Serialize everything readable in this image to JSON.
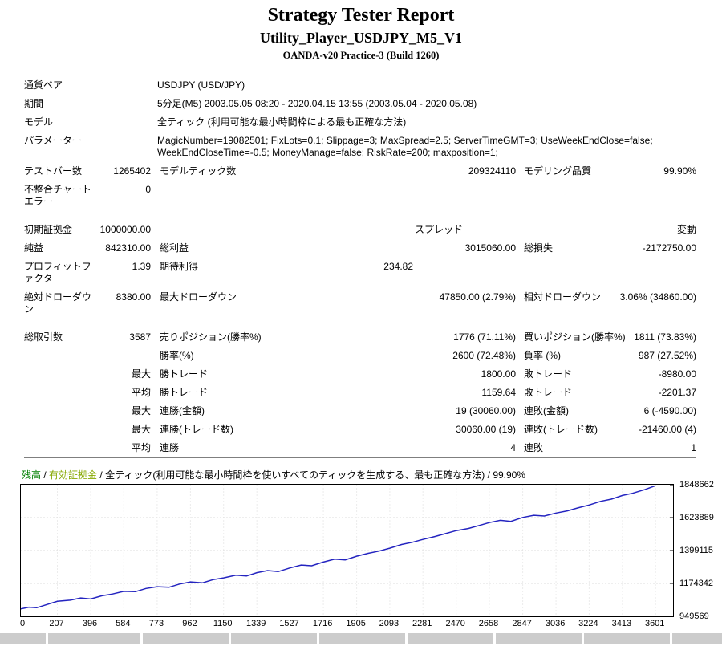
{
  "header": {
    "title": "Strategy Tester Report",
    "subtitle": "Utility_Player_USDJPY_M5_V1",
    "server_build": "OANDA-v20 Practice-3 (Build 1260)"
  },
  "summary": {
    "rows": [
      {
        "a": "通貨ペア",
        "wide": "USDJPY (USD/JPY)"
      },
      {
        "a": "期間",
        "wide": "5分足(M5) 2003.05.05 08:20 - 2020.04.15 13:55 (2003.05.04 - 2020.05.08)"
      },
      {
        "a": "モデル",
        "wide": "全ティック (利用可能な最小時間枠による最も正確な方法)"
      },
      {
        "a": "パラメーター",
        "wide": "MagicNumber=19082501; FixLots=0.1; Slippage=3; MaxSpread=2.5; ServerTimeGMT=3; UseWeekEndClose=false; WeekEndCloseTime=-0.5; MoneyManage=false; RiskRate=200; maxposition=1;"
      },
      {
        "a": "テストバー数",
        "b": "1265402",
        "c": "モデルティック数",
        "d": "209324110",
        "e": "モデリング品質",
        "f": "99.90%"
      },
      {
        "a": "不整合チャートエラー",
        "b": "0"
      },
      {
        "gap": true
      },
      {
        "a": "初期証拠金",
        "b": "1000000.00",
        "d": "スプレッド",
        "dcls": "shift-spread",
        "f": "変動"
      },
      {
        "a": "純益",
        "b": "842310.00",
        "c": "総利益",
        "d": "3015060.00",
        "e": "総損失",
        "f": "-2172750.00"
      },
      {
        "a": "プロフィットファクタ",
        "b": "1.39",
        "c": "期待利得",
        "d": "234.82",
        "dcls": "shift-payoff"
      },
      {
        "a": "絶対ドローダウン",
        "b": "8380.00",
        "c": "最大ドローダウン",
        "d": "47850.00 (2.79%)",
        "e": "相対ドローダウン",
        "f": "3.06% (34860.00)"
      },
      {
        "gap": true
      },
      {
        "a": "総取引数",
        "b": "3587",
        "c": "売りポジション(勝率%)",
        "d": "1776 (71.11%)",
        "e": "買いポジション(勝率%)",
        "f": "1811 (73.83%)"
      },
      {
        "c": "勝率(%)",
        "d": "2600 (72.48%)",
        "e": "負率 (%)",
        "f": "987 (27.52%)"
      },
      {
        "b": "最大",
        "c": "勝トレード",
        "d": "1800.00",
        "e": "敗トレード",
        "f": "-8980.00"
      },
      {
        "b": "平均",
        "c": "勝トレード",
        "d": "1159.64",
        "e": "敗トレード",
        "f": "-2201.37"
      },
      {
        "b": "最大",
        "c": "連勝(金額)",
        "d": "19 (30060.00)",
        "e": "連敗(金額)",
        "f": "6 (-4590.00)"
      },
      {
        "b": "最大",
        "c": "連勝(トレード数)",
        "d": "30060.00 (19)",
        "e": "連敗(トレード数)",
        "f": "-21460.00 (4)"
      },
      {
        "b": "平均",
        "c": "連勝",
        "d": "4",
        "e": "連敗",
        "f": "1",
        "last": true
      }
    ]
  },
  "chart_data": {
    "type": "line",
    "legend": {
      "balance_label": "残高",
      "separator": " / ",
      "equity_label": "有効証拠金",
      "model_label": "全ティック(利用可能な最小時間枠を使いすべてのティックを生成する、最も正確な方法)",
      "quality_label": "99.90%"
    },
    "colors": {
      "balance_line": "#2424c0",
      "balance_label": "#008000",
      "equity_label": "#86a800"
    },
    "xlabel": "",
    "ylabel": "",
    "xlim": [
      0,
      3700
    ],
    "ylim": [
      949569,
      1848662
    ],
    "x_ticks": [
      0,
      207,
      396,
      584,
      773,
      962,
      1150,
      1339,
      1527,
      1716,
      1905,
      2093,
      2281,
      2470,
      2658,
      2847,
      3036,
      3224,
      3413,
      3601
    ],
    "y_ticks": [
      1848662,
      1623889,
      1399115,
      1174342,
      949569
    ],
    "series": [
      {
        "name": "残高",
        "x": [
          0,
          45,
          90,
          135,
          207,
          280,
          340,
          396,
          460,
          520,
          584,
          650,
          710,
          773,
          840,
          900,
          962,
          1030,
          1090,
          1150,
          1220,
          1280,
          1339,
          1400,
          1460,
          1527,
          1590,
          1650,
          1716,
          1780,
          1840,
          1905,
          1970,
          2030,
          2093,
          2160,
          2220,
          2281,
          2350,
          2410,
          2470,
          2540,
          2600,
          2658,
          2720,
          2780,
          2847,
          2910,
          2970,
          3036,
          3100,
          3160,
          3224,
          3290,
          3350,
          3413,
          3470,
          3540,
          3601
        ],
        "values": [
          1000000,
          1012000,
          1008000,
          1025000,
          1052000,
          1060000,
          1075000,
          1068000,
          1090000,
          1102000,
          1120000,
          1118000,
          1140000,
          1152000,
          1148000,
          1170000,
          1185000,
          1178000,
          1200000,
          1212000,
          1230000,
          1225000,
          1248000,
          1262000,
          1255000,
          1280000,
          1300000,
          1295000,
          1320000,
          1340000,
          1335000,
          1360000,
          1380000,
          1395000,
          1415000,
          1440000,
          1455000,
          1475000,
          1495000,
          1515000,
          1535000,
          1550000,
          1570000,
          1590000,
          1605000,
          1598000,
          1625000,
          1640000,
          1635000,
          1655000,
          1670000,
          1690000,
          1710000,
          1735000,
          1750000,
          1775000,
          1790000,
          1815000,
          1842310
        ]
      }
    ]
  }
}
